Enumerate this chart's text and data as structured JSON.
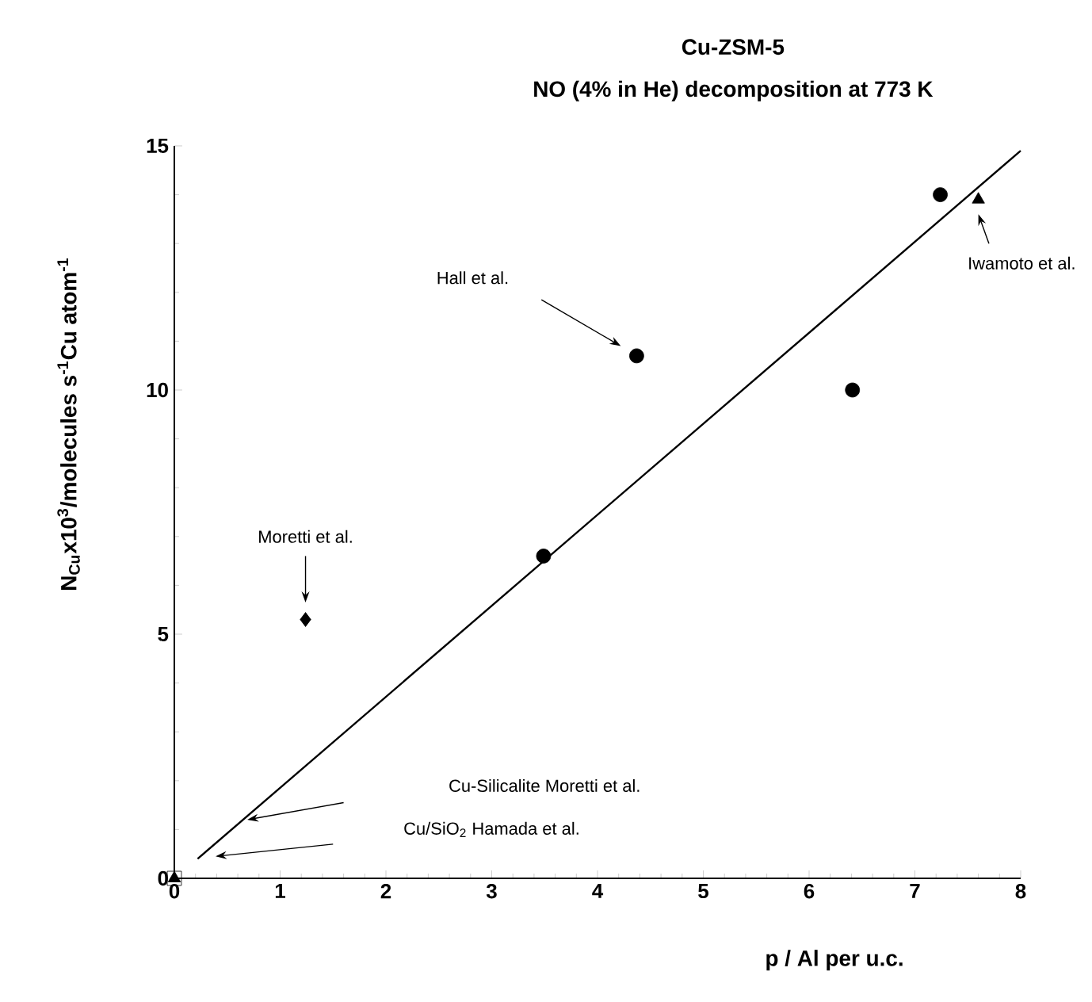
{
  "chart_data": {
    "type": "scatter",
    "title": "Cu-ZSM-5",
    "subtitle": "NO (4% in He) decomposition at 773 K",
    "xlabel": "p / Al per u.c.",
    "ylabel": "N$_{Cu}$x10$^{3}$/molecules s$^{-1}$Cu atom$^{-1}$",
    "xlim": [
      0,
      8
    ],
    "ylim": [
      0,
      15
    ],
    "xticks": [
      0,
      1,
      2,
      3,
      4,
      5,
      6,
      7,
      8
    ],
    "yticks": [
      0,
      5,
      10,
      15
    ],
    "series": [
      {
        "type": "line",
        "color": "#000000",
        "marker": "none",
        "x": [
          0.22,
          8.0
        ],
        "values": [
          0.4,
          14.9
        ]
      },
      {
        "color": "#000000",
        "marker": "circle",
        "x": [
          3.49,
          4.37,
          6.41,
          7.24
        ],
        "values": [
          6.6,
          10.7,
          10.0,
          14.0
        ]
      },
      {
        "color": "#000000",
        "marker": "triangle",
        "x": [
          7.6
        ],
        "values": [
          13.9
        ]
      },
      {
        "color": "#000000",
        "marker": "diamond",
        "x": [
          1.24
        ],
        "values": [
          5.3
        ]
      },
      {
        "color": "#000000",
        "marker": "square",
        "x": [
          0
        ],
        "values": [
          0
        ]
      },
      {
        "color": "#000000",
        "marker": "triangle",
        "x": [
          0
        ],
        "values": [
          0
        ]
      }
    ],
    "annotations": [
      "Moretti et al.",
      "Hall et al.",
      "Iwamoto et al.",
      "Cu-Silicalite Moretti et al.",
      "Cu/SiO$_{2}$ Hamada et al."
    ]
  }
}
